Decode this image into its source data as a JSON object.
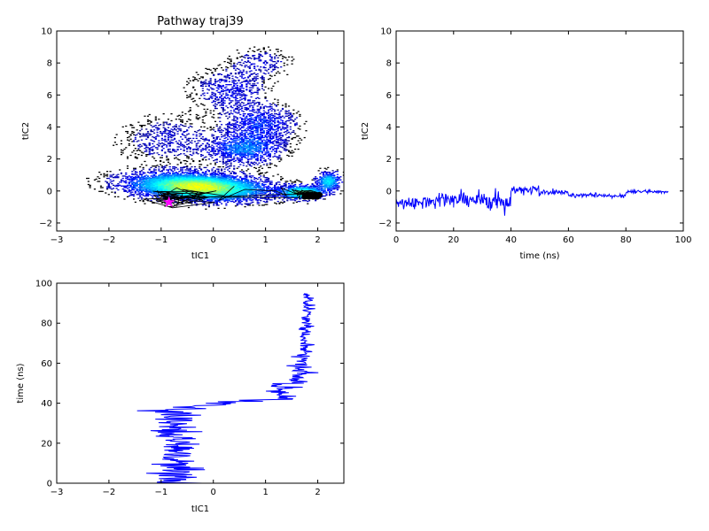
{
  "chart_data": [
    {
      "type": "heatmap",
      "title": "Pathway traj39",
      "xlabel": "tIC1",
      "ylabel": "tIC2",
      "xlim": [
        -3,
        2.5
      ],
      "ylim": [
        -2.5,
        10
      ],
      "x_ticks": [
        "−3",
        "−2",
        "−1",
        "0",
        "1",
        "2"
      ],
      "y_ticks": [
        "−2",
        "0",
        "2",
        "4",
        "6",
        "8",
        "10"
      ],
      "colormap": [
        "#000080",
        "#0000ff",
        "#00a0ff",
        "#00ffff",
        "#80ff80",
        "#ffff00"
      ],
      "overlay_line_color": "#000000",
      "start_marker": {
        "x": -0.85,
        "y": -0.7,
        "color": "#ff00ff",
        "shape": "star"
      },
      "path": [
        [
          -0.85,
          -0.7
        ],
        [
          -0.6,
          -0.4
        ],
        [
          -1.0,
          -0.3
        ],
        [
          -0.4,
          -0.8
        ],
        [
          -0.9,
          -0.1
        ],
        [
          -0.2,
          -0.6
        ],
        [
          -0.7,
          0.2
        ],
        [
          -1.1,
          -0.6
        ],
        [
          -0.3,
          -0.2
        ],
        [
          -0.8,
          -1.0
        ],
        [
          -0.1,
          -0.4
        ],
        [
          -0.6,
          0.1
        ],
        [
          0.2,
          -0.3
        ],
        [
          0.4,
          0.3
        ],
        [
          0.1,
          -0.6
        ],
        [
          0.6,
          0.1
        ],
        [
          1.2,
          0.0
        ],
        [
          1.4,
          -0.3
        ],
        [
          1.3,
          0.2
        ],
        [
          1.6,
          -0.2
        ],
        [
          1.5,
          0.1
        ],
        [
          1.8,
          -0.3
        ],
        [
          1.7,
          -0.1
        ],
        [
          1.9,
          -0.4
        ],
        [
          2.0,
          -0.2
        ],
        [
          1.85,
          -0.35
        ],
        [
          1.95,
          -0.15
        ]
      ],
      "grid": false
    },
    {
      "type": "line",
      "xlabel": "time (ns)",
      "ylabel": "tIC2",
      "xlim": [
        0,
        100
      ],
      "ylim": [
        -2.5,
        10
      ],
      "x_ticks": [
        "0",
        "20",
        "40",
        "60",
        "80",
        "100"
      ],
      "y_ticks": [
        "−2",
        "0",
        "2",
        "4",
        "6",
        "8",
        "10"
      ],
      "series_color": "#0000ff",
      "x_end": 95,
      "segments": [
        {
          "t0": 0,
          "t1": 10,
          "mean": -0.7,
          "amp": 0.35
        },
        {
          "t0": 10,
          "t1": 20,
          "mean": -0.6,
          "amp": 0.4
        },
        {
          "t0": 20,
          "t1": 30,
          "mean": -0.55,
          "amp": 0.45
        },
        {
          "t0": 30,
          "t1": 40,
          "mean": -0.7,
          "amp": 0.5
        },
        {
          "t0": 40,
          "t1": 50,
          "mean": 0.05,
          "amp": 0.25
        },
        {
          "t0": 50,
          "t1": 60,
          "mean": -0.1,
          "amp": 0.15
        },
        {
          "t0": 60,
          "t1": 70,
          "mean": -0.25,
          "amp": 0.12
        },
        {
          "t0": 70,
          "t1": 80,
          "mean": -0.3,
          "amp": 0.1
        },
        {
          "t0": 80,
          "t1": 95,
          "mean": -0.05,
          "amp": 0.1
        }
      ],
      "grid": false
    },
    {
      "type": "line",
      "xlabel": "tIC1",
      "ylabel": "time (ns)",
      "xlim": [
        -3,
        2.5
      ],
      "ylim": [
        0,
        100
      ],
      "x_ticks": [
        "−3",
        "−2",
        "−1",
        "0",
        "1",
        "2"
      ],
      "y_ticks": [
        "0",
        "20",
        "40",
        "60",
        "80",
        "100"
      ],
      "series_color": "#0000ff",
      "t_end": 95,
      "segments": [
        {
          "t0": 0,
          "t1": 10,
          "mean": -0.7,
          "amp": 0.45
        },
        {
          "t0": 10,
          "t1": 20,
          "mean": -0.7,
          "amp": 0.4
        },
        {
          "t0": 20,
          "t1": 30,
          "mean": -0.75,
          "amp": 0.45
        },
        {
          "t0": 30,
          "t1": 38,
          "mean": -0.7,
          "amp": 0.55
        },
        {
          "t0": 38,
          "t1": 42,
          "mean": 0.2,
          "amp": 0.7
        },
        {
          "t0": 42,
          "t1": 50,
          "mean": 1.3,
          "amp": 0.25
        },
        {
          "t0": 50,
          "t1": 60,
          "mean": 1.65,
          "amp": 0.2
        },
        {
          "t0": 60,
          "t1": 75,
          "mean": 1.75,
          "amp": 0.12
        },
        {
          "t0": 75,
          "t1": 95,
          "mean": 1.8,
          "amp": 0.12
        }
      ],
      "grid": false
    }
  ]
}
